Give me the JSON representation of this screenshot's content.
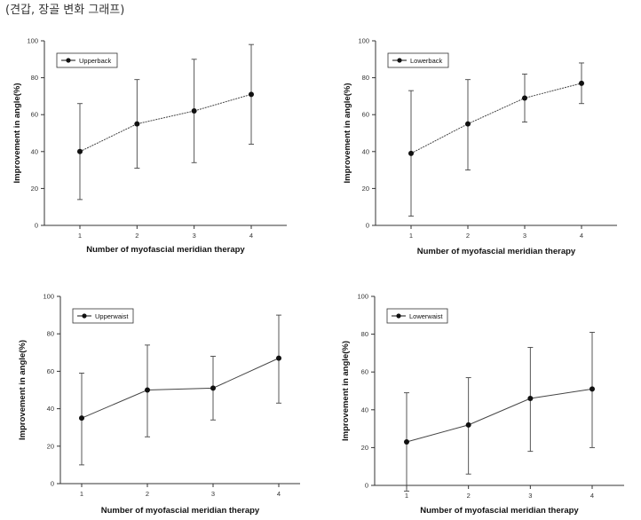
{
  "caption": "(견갑, 장골 변화 그래프)",
  "chart_data": [
    {
      "type": "line",
      "legend": "Upperback",
      "xlabel": "Number of  myofascial meridian therapy",
      "ylabel": "Improvement in angle(%)",
      "x": [
        1,
        2,
        3,
        4
      ],
      "values": [
        40,
        55,
        62,
        71
      ],
      "err_low": [
        14,
        31,
        34,
        44
      ],
      "err_high": [
        66,
        79,
        90,
        98
      ],
      "ylim": [
        0,
        100
      ],
      "yticks": [
        0,
        20,
        40,
        60,
        80,
        100
      ],
      "xticks": [
        1,
        2,
        3,
        4
      ],
      "legend_position": "top-left"
    },
    {
      "type": "line",
      "legend": "Lowerback",
      "xlabel": "Number of  myofascial meridian therapy",
      "ylabel": "Improvement in angle(%)",
      "x": [
        1,
        2,
        3,
        4
      ],
      "values": [
        39,
        55,
        69,
        77
      ],
      "err_low": [
        5,
        30,
        56,
        66
      ],
      "err_high": [
        73,
        79,
        82,
        88
      ],
      "ylim": [
        0,
        100
      ],
      "yticks": [
        0,
        20,
        40,
        60,
        80,
        100
      ],
      "xticks": [
        1,
        2,
        3,
        4
      ],
      "legend_position": "top-left"
    },
    {
      "type": "line",
      "legend": "Upperwaist",
      "xlabel": "Number of  myofascial meridian therapy",
      "ylabel": "Improvement in angle(%)",
      "x": [
        1,
        2,
        3,
        4
      ],
      "values": [
        35,
        50,
        51,
        67
      ],
      "err_low": [
        10,
        25,
        34,
        43
      ],
      "err_high": [
        59,
        74,
        68,
        90
      ],
      "ylim": [
        0,
        100
      ],
      "yticks": [
        0,
        20,
        40,
        60,
        80,
        100
      ],
      "xticks": [
        1,
        2,
        3,
        4
      ],
      "legend_position": "top-left"
    },
    {
      "type": "line",
      "legend": "Lowerwaist",
      "xlabel": "Number of  myofascial meridian therapy",
      "ylabel": "Improvement in angle(%)",
      "x": [
        1,
        2,
        3,
        4
      ],
      "values": [
        23,
        32,
        46,
        51
      ],
      "err_low": [
        -3,
        6,
        18,
        20
      ],
      "err_high": [
        49,
        57,
        73,
        81
      ],
      "ylim": [
        0,
        100
      ],
      "yticks": [
        0,
        20,
        40,
        60,
        80,
        100
      ],
      "xticks": [
        1,
        2,
        3,
        4
      ],
      "legend_position": "top-left"
    }
  ]
}
